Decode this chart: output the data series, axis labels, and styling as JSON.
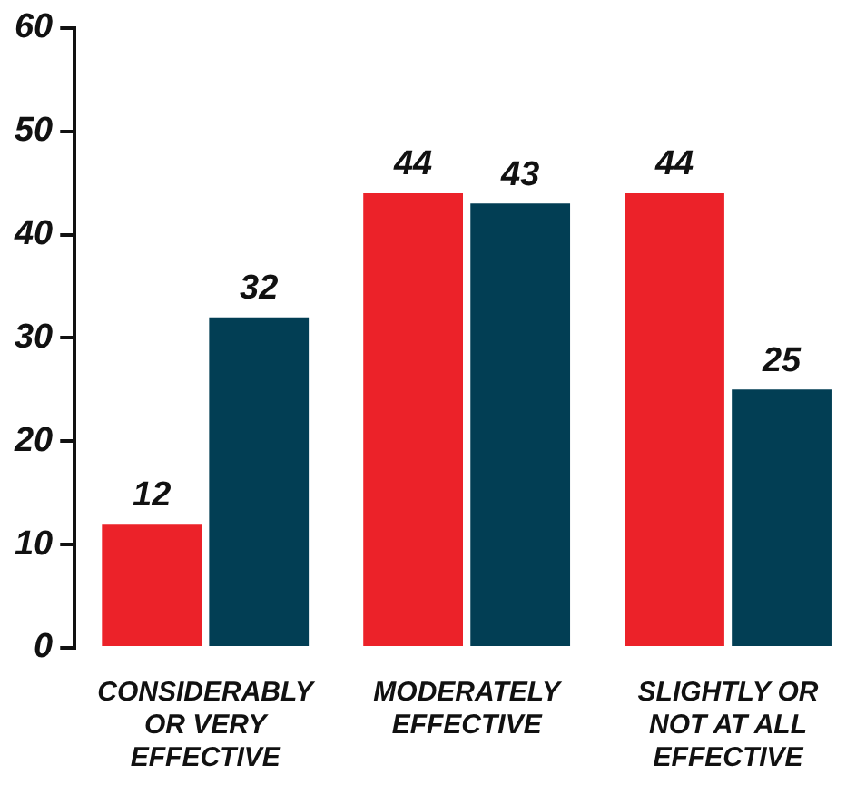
{
  "chart_data": {
    "type": "bar",
    "categories": [
      "CONSIDERABLY OR VERY EFFECTIVE",
      "MODERATELY EFFECTIVE",
      "SLIGHTLY OR NOT AT ALL EFFECTIVE"
    ],
    "series": [
      {
        "color": "#ec2229",
        "values": [
          12,
          44,
          44
        ]
      },
      {
        "color": "#023e54",
        "values": [
          32,
          43,
          25
        ]
      }
    ],
    "ylim": [
      0,
      60
    ],
    "yticks": [
      0,
      10,
      20,
      30,
      40,
      50,
      60
    ],
    "grid": false,
    "legend": false,
    "data_labels": true
  }
}
